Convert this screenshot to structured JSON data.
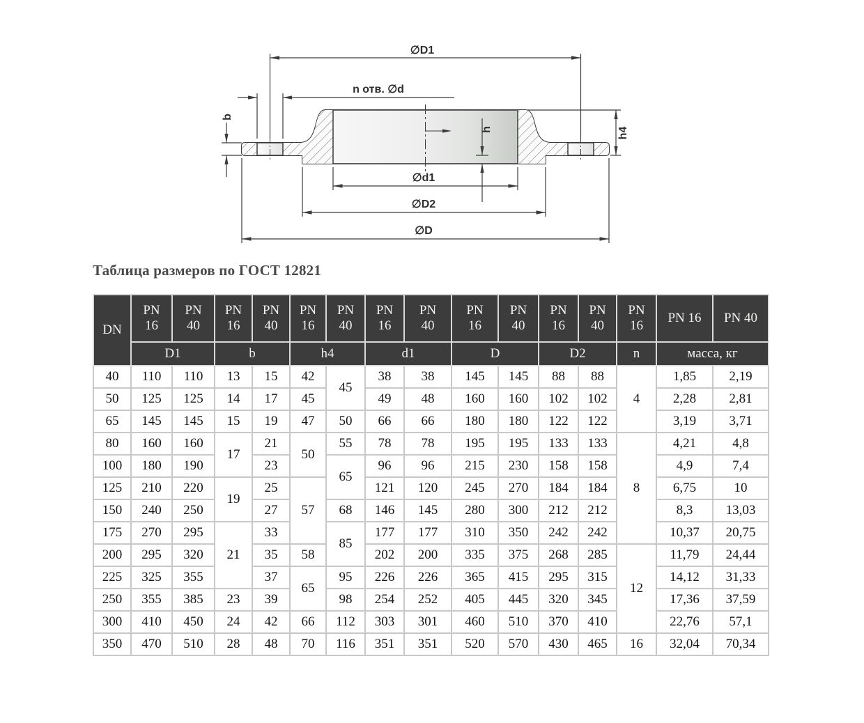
{
  "title": "Таблица размеров по ГОСТ 12821",
  "colors": {
    "header_bg": "#3c3c3c",
    "header_text": "#f3f2f0",
    "body_border": "#c8c8c8",
    "drawing_line": "#3b3b3b",
    "title_text": "#4a4a4a"
  },
  "drawing": {
    "labels": {
      "D1": "∅D1",
      "holes": "n отв. ∅d",
      "b": "b",
      "h": "h",
      "h4": "h4",
      "d1": "∅d1",
      "D2": "∅D2",
      "D": "∅D"
    }
  },
  "table": {
    "header": {
      "rows": [
        [
          {
            "t": "DN",
            "rs": 2
          },
          {
            "t": "PN 16",
            "stack": true
          },
          {
            "t": "PN 40",
            "stack": true
          },
          {
            "t": "PN 16",
            "stack": true
          },
          {
            "t": "PN 40",
            "stack": true
          },
          {
            "t": "PN 16",
            "stack": true
          },
          {
            "t": "PN 40",
            "stack": true
          },
          {
            "t": "PN 16",
            "stack": true
          },
          {
            "t": "PN 40",
            "stack": true
          },
          {
            "t": "PN 16",
            "stack": true
          },
          {
            "t": "PN 40",
            "stack": true
          },
          {
            "t": "PN 16",
            "stack": true
          },
          {
            "t": "PN 40",
            "stack": true
          },
          {
            "t": "PN 16",
            "stack": true
          },
          {
            "t": "PN 16"
          },
          {
            "t": "PN 40"
          }
        ],
        [
          {
            "t": "D1",
            "cs": 2
          },
          {
            "t": "b",
            "cs": 2
          },
          {
            "t": "h4",
            "cs": 2
          },
          {
            "t": "d1",
            "cs": 2
          },
          {
            "t": "D",
            "cs": 2
          },
          {
            "t": "D2",
            "cs": 2
          },
          {
            "t": "n"
          },
          {
            "t": "масса, кг",
            "cs": 2
          }
        ]
      ]
    },
    "rows": [
      [
        "40",
        "110",
        "110",
        "13",
        "15",
        "42",
        {
          "t": "45",
          "rs": 2
        },
        "38",
        "38",
        "145",
        "145",
        "88",
        "88",
        {
          "t": "4",
          "rs": 3
        },
        "1,85",
        "2,19"
      ],
      [
        "50",
        "125",
        "125",
        "14",
        "17",
        "45",
        "49",
        "48",
        "160",
        "160",
        "102",
        "102",
        "2,28",
        "2,81"
      ],
      [
        "65",
        "145",
        "145",
        "15",
        "19",
        "47",
        "50",
        "66",
        "66",
        "180",
        "180",
        "122",
        "122",
        "3,19",
        "3,71"
      ],
      [
        "80",
        "160",
        "160",
        {
          "t": "17",
          "rs": 2
        },
        "21",
        {
          "t": "50",
          "rs": 2
        },
        "55",
        "78",
        "78",
        "195",
        "195",
        "133",
        "133",
        {
          "t": "8",
          "rs": 5
        },
        "4,21",
        "4,8"
      ],
      [
        "100",
        "180",
        "190",
        "23",
        {
          "t": "65",
          "rs": 2
        },
        "96",
        "96",
        "215",
        "230",
        "158",
        "158",
        "4,9",
        "7,4"
      ],
      [
        "125",
        "210",
        "220",
        {
          "t": "19",
          "rs": 2
        },
        "25",
        {
          "t": "57",
          "rs": 3
        },
        "121",
        "120",
        "245",
        "270",
        "184",
        "184",
        "6,75",
        "10"
      ],
      [
        "150",
        "240",
        "250",
        "27",
        "68",
        "146",
        "145",
        "280",
        "300",
        "212",
        "212",
        "8,3",
        "13,03"
      ],
      [
        "175",
        "270",
        "295",
        {
          "t": "21",
          "rs": 3
        },
        "33",
        {
          "t": "85",
          "rs": 2
        },
        "177",
        "177",
        "310",
        "350",
        "242",
        "242",
        "10,37",
        "20,75"
      ],
      [
        "200",
        "295",
        "320",
        "35",
        "58",
        "202",
        "200",
        "335",
        "375",
        "268",
        "285",
        {
          "t": "12",
          "rs": 4
        },
        "11,79",
        "24,44"
      ],
      [
        "225",
        "325",
        "355",
        "37",
        {
          "t": "65",
          "rs": 2
        },
        "95",
        "226",
        "226",
        "365",
        "415",
        "295",
        "315",
        "14,12",
        "31,33"
      ],
      [
        "250",
        "355",
        "385",
        "23",
        "39",
        "98",
        "254",
        "252",
        "405",
        "445",
        "320",
        "345",
        "17,36",
        "37,59"
      ],
      [
        "300",
        "410",
        "450",
        "24",
        "42",
        "66",
        "112",
        "303",
        "301",
        "460",
        "510",
        "370",
        "410",
        "22,76",
        "57,1"
      ],
      [
        "350",
        "470",
        "510",
        "28",
        "48",
        "70",
        "116",
        "351",
        "351",
        "520",
        "570",
        "430",
        "465",
        "16",
        "32,04",
        "70,34"
      ]
    ]
  }
}
